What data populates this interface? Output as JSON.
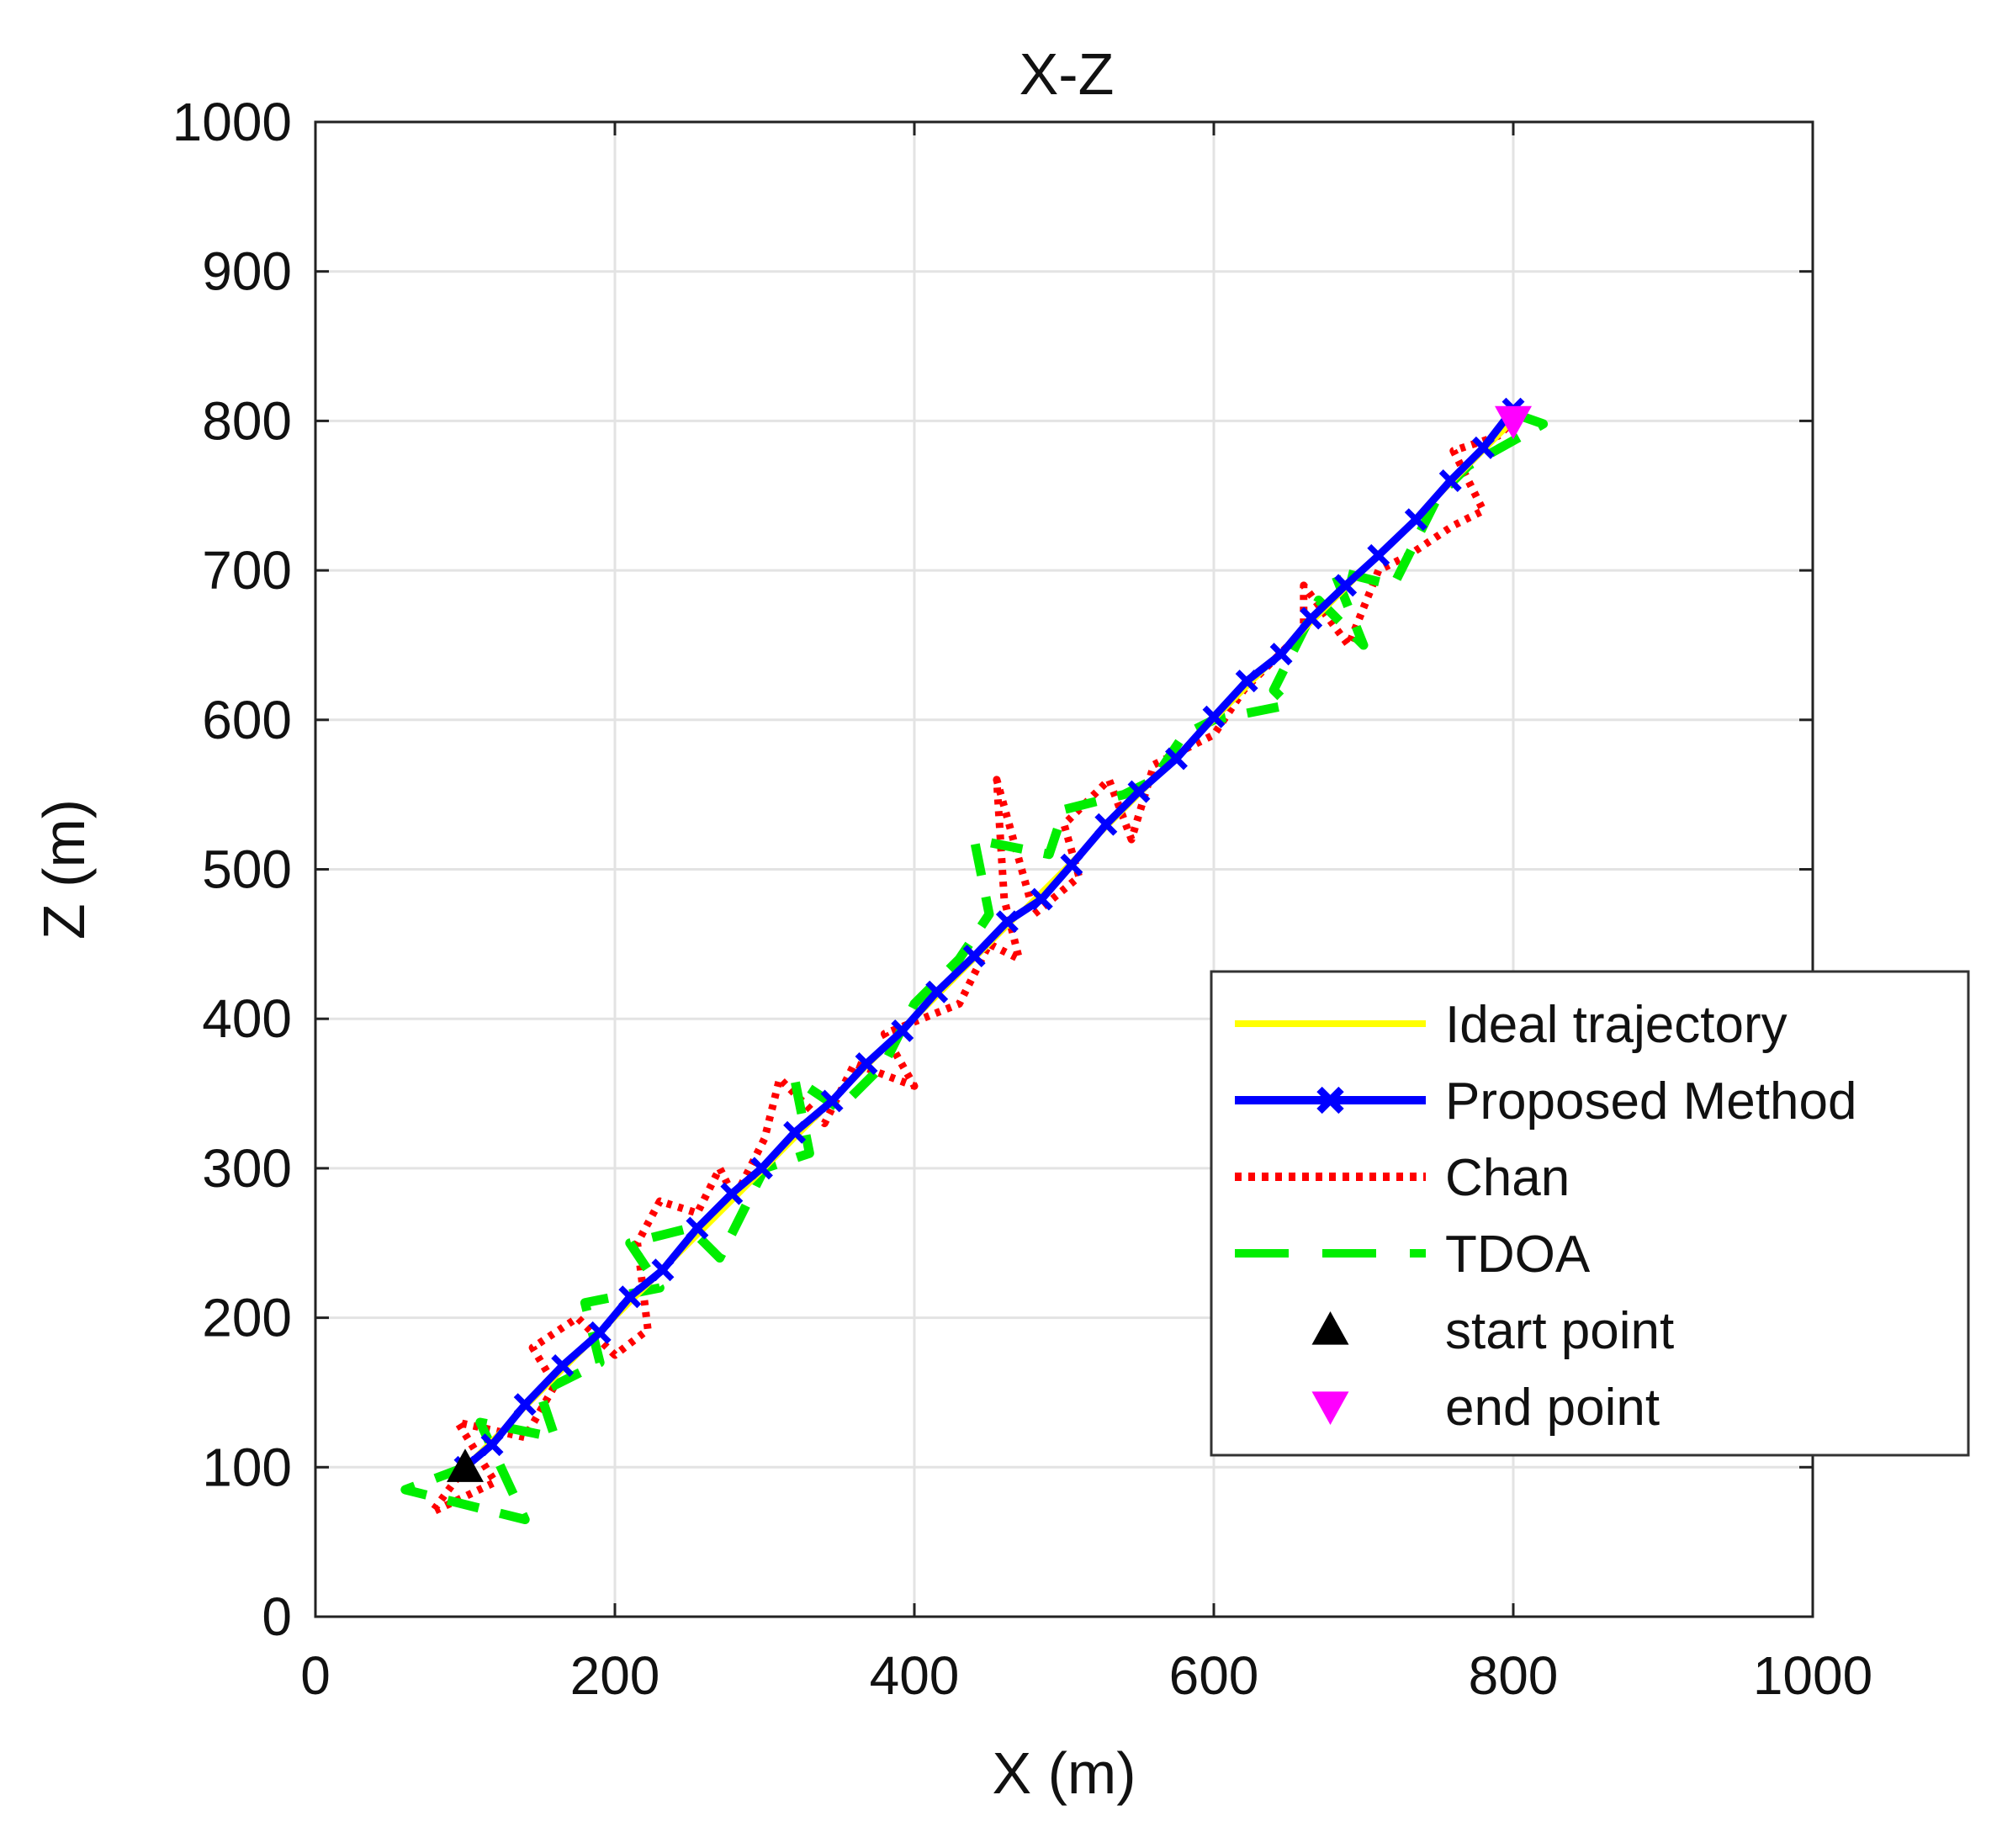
{
  "chart_data": {
    "type": "line",
    "title": "X-Z",
    "xlabel": "X (m)",
    "ylabel": "Z (m)",
    "xlim": [
      0,
      1000
    ],
    "ylim": [
      0,
      1000
    ],
    "xticks": [
      "0",
      "200",
      "400",
      "600",
      "800",
      "1000"
    ],
    "yticks": [
      "0",
      "100",
      "200",
      "300",
      "400",
      "500",
      "600",
      "700",
      "800",
      "900",
      "1000"
    ],
    "grid": true,
    "legend_position": "bottom-right",
    "series": [
      {
        "name": "Ideal trajectory",
        "color": "#ffff00",
        "style": "solid",
        "points": [
          [
            100,
            100
          ],
          [
            800,
            800
          ]
        ]
      },
      {
        "name": "Proposed Method",
        "color": "#0000ff",
        "style": "solid-x-marker",
        "points": [
          [
            100,
            100
          ],
          [
            118,
            115
          ],
          [
            140,
            142
          ],
          [
            165,
            168
          ],
          [
            190,
            190
          ],
          [
            210,
            214
          ],
          [
            232,
            232
          ],
          [
            255,
            260
          ],
          [
            278,
            283
          ],
          [
            298,
            300
          ],
          [
            320,
            324
          ],
          [
            345,
            345
          ],
          [
            368,
            370
          ],
          [
            392,
            392
          ],
          [
            415,
            418
          ],
          [
            440,
            442
          ],
          [
            462,
            465
          ],
          [
            485,
            480
          ],
          [
            505,
            503
          ],
          [
            528,
            530
          ],
          [
            550,
            552
          ],
          [
            575,
            574
          ],
          [
            600,
            602
          ],
          [
            622,
            626
          ],
          [
            645,
            644
          ],
          [
            665,
            668
          ],
          [
            688,
            690
          ],
          [
            710,
            710
          ],
          [
            735,
            734
          ],
          [
            758,
            760
          ],
          [
            780,
            782
          ],
          [
            800,
            808
          ]
        ]
      },
      {
        "name": "Chan",
        "color": "#ff0000",
        "style": "dotted",
        "points": [
          [
            100,
            100
          ],
          [
            78,
            70
          ],
          [
            120,
            90
          ],
          [
            95,
            130
          ],
          [
            140,
            120
          ],
          [
            160,
            155
          ],
          [
            145,
            180
          ],
          [
            175,
            200
          ],
          [
            200,
            175
          ],
          [
            222,
            192
          ],
          [
            215,
            250
          ],
          [
            230,
            278
          ],
          [
            255,
            270
          ],
          [
            270,
            300
          ],
          [
            280,
            280
          ],
          [
            300,
            320
          ],
          [
            310,
            360
          ],
          [
            340,
            330
          ],
          [
            360,
            370
          ],
          [
            400,
            355
          ],
          [
            380,
            390
          ],
          [
            430,
            410
          ],
          [
            450,
            450
          ],
          [
            470,
            440
          ],
          [
            460,
            480
          ],
          [
            455,
            560
          ],
          [
            480,
            470
          ],
          [
            510,
            495
          ],
          [
            500,
            530
          ],
          [
            530,
            560
          ],
          [
            545,
            520
          ],
          [
            560,
            570
          ],
          [
            600,
            590
          ],
          [
            620,
            620
          ],
          [
            640,
            640
          ],
          [
            660,
            660
          ],
          [
            660,
            690
          ],
          [
            690,
            650
          ],
          [
            710,
            700
          ],
          [
            730,
            710
          ],
          [
            760,
            730
          ],
          [
            780,
            740
          ],
          [
            760,
            780
          ],
          [
            790,
            790
          ],
          [
            800,
            800
          ]
        ]
      },
      {
        "name": "TDOA",
        "color": "#00ee00",
        "style": "dashed",
        "points": [
          [
            100,
            100
          ],
          [
            60,
            85
          ],
          [
            140,
            65
          ],
          [
            110,
            130
          ],
          [
            160,
            120
          ],
          [
            150,
            150
          ],
          [
            190,
            170
          ],
          [
            180,
            210
          ],
          [
            230,
            220
          ],
          [
            210,
            250
          ],
          [
            250,
            260
          ],
          [
            270,
            240
          ],
          [
            300,
            300
          ],
          [
            330,
            310
          ],
          [
            320,
            360
          ],
          [
            350,
            340
          ],
          [
            380,
            370
          ],
          [
            400,
            410
          ],
          [
            430,
            440
          ],
          [
            450,
            470
          ],
          [
            440,
            520
          ],
          [
            490,
            510
          ],
          [
            500,
            540
          ],
          [
            540,
            550
          ],
          [
            560,
            560
          ],
          [
            580,
            590
          ],
          [
            600,
            600
          ],
          [
            650,
            610
          ],
          [
            640,
            620
          ],
          [
            670,
            680
          ],
          [
            700,
            650
          ],
          [
            680,
            700
          ],
          [
            720,
            690
          ],
          [
            750,
            750
          ],
          [
            770,
            770
          ],
          [
            820,
            798
          ],
          [
            800,
            805
          ]
        ]
      },
      {
        "name": "start point",
        "color": "#000000",
        "marker": "triangle-up",
        "points": [
          [
            100,
            100
          ]
        ]
      },
      {
        "name": "end point",
        "color": "#ff00ff",
        "marker": "triangle-down",
        "points": [
          [
            800,
            800
          ]
        ]
      }
    ]
  }
}
